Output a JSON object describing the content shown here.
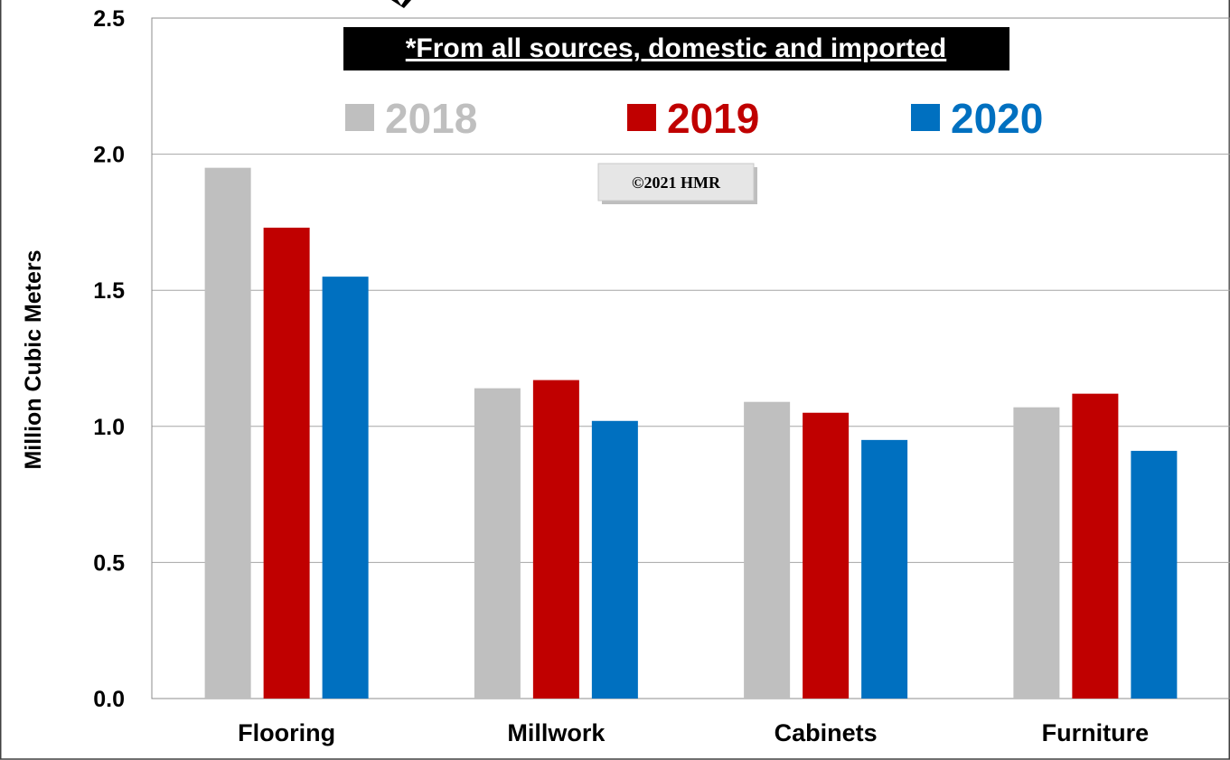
{
  "chart_data": {
    "type": "bar",
    "title": "",
    "ylabel": "Million Cubic Meters",
    "xlabel": "",
    "ylim": [
      0,
      2.5
    ],
    "yticks": [
      "0.0",
      "0.5",
      "1.0",
      "1.5",
      "2.0",
      "2.5"
    ],
    "ytick_values": [
      0,
      0.5,
      1.0,
      1.5,
      2.0,
      2.5
    ],
    "grid": true,
    "legend_position": "top",
    "categories": [
      "Flooring",
      "Millwork",
      "Cabinets",
      "Furniture"
    ],
    "series": [
      {
        "name": "2018",
        "color": "#bfbfbf",
        "values": [
          1.95,
          1.14,
          1.09,
          1.07
        ]
      },
      {
        "name": "2019",
        "color": "#c00000",
        "values": [
          1.73,
          1.17,
          1.05,
          1.12
        ]
      },
      {
        "name": "2020",
        "color": "#0070c0",
        "values": [
          1.55,
          1.02,
          0.95,
          0.91
        ]
      }
    ],
    "annotations": {
      "banner": "*From all sources, domestic and imported",
      "copyright": "©2021 HMR"
    }
  }
}
